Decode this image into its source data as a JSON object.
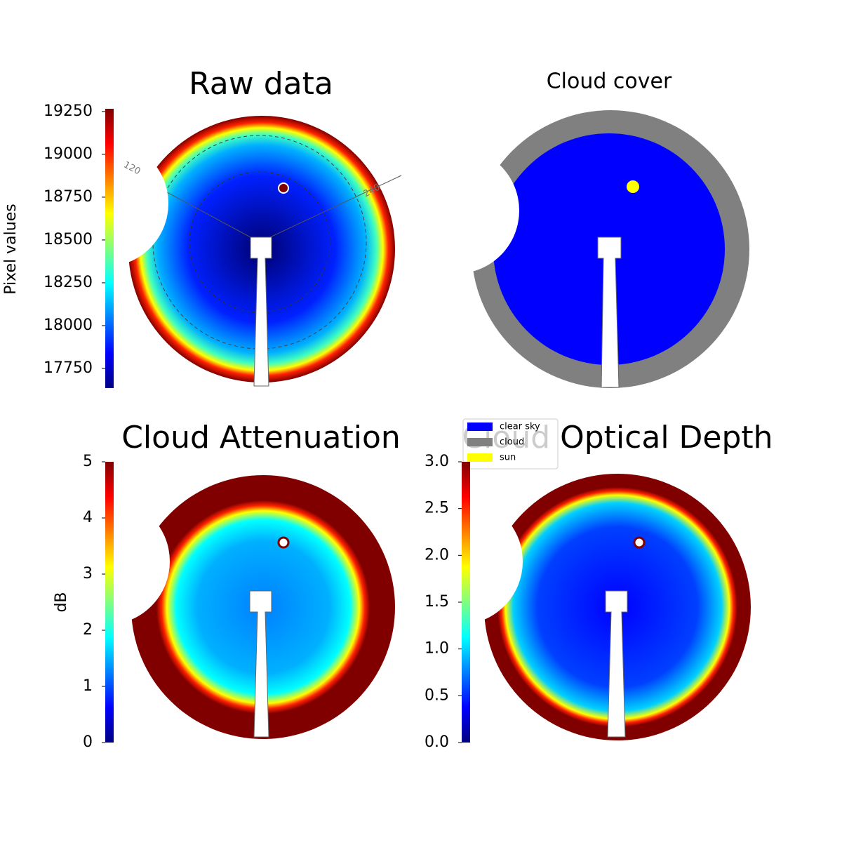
{
  "chart_data": [
    {
      "type": "image",
      "title": "Raw data",
      "colorbar_label": "Pixel values",
      "colormap": "jet",
      "ylim": [
        17635,
        19266
      ],
      "yticks": [
        17750,
        18000,
        18250,
        18500,
        18750,
        19000,
        19250
      ],
      "annotations": [
        "120",
        "240"
      ]
    },
    {
      "type": "image",
      "title": "Cloud cover",
      "series": [
        {
          "name": "clear sky",
          "color": "#0000ff"
        },
        {
          "name": "cloud",
          "color": "#808080"
        },
        {
          "name": "sun",
          "color": "#ffff00"
        }
      ]
    },
    {
      "type": "image",
      "title": "Cloud Attenuation",
      "colorbar_label": "dB",
      "colormap": "jet",
      "ylim": [
        0,
        5
      ],
      "yticks": [
        0,
        1,
        2,
        3,
        4,
        5
      ]
    },
    {
      "type": "image",
      "title": "Cloud Optical Depth",
      "colormap": "jet",
      "ylim": [
        0,
        3
      ],
      "yticks": [
        {
          "value": 0,
          "label": "0.0"
        },
        0.5,
        {
          "value": 1,
          "label": "1.0"
        },
        1.5,
        {
          "value": 2,
          "label": "2.0"
        },
        2.5,
        {
          "value": 3,
          "label": "3.0"
        }
      ]
    }
  ]
}
